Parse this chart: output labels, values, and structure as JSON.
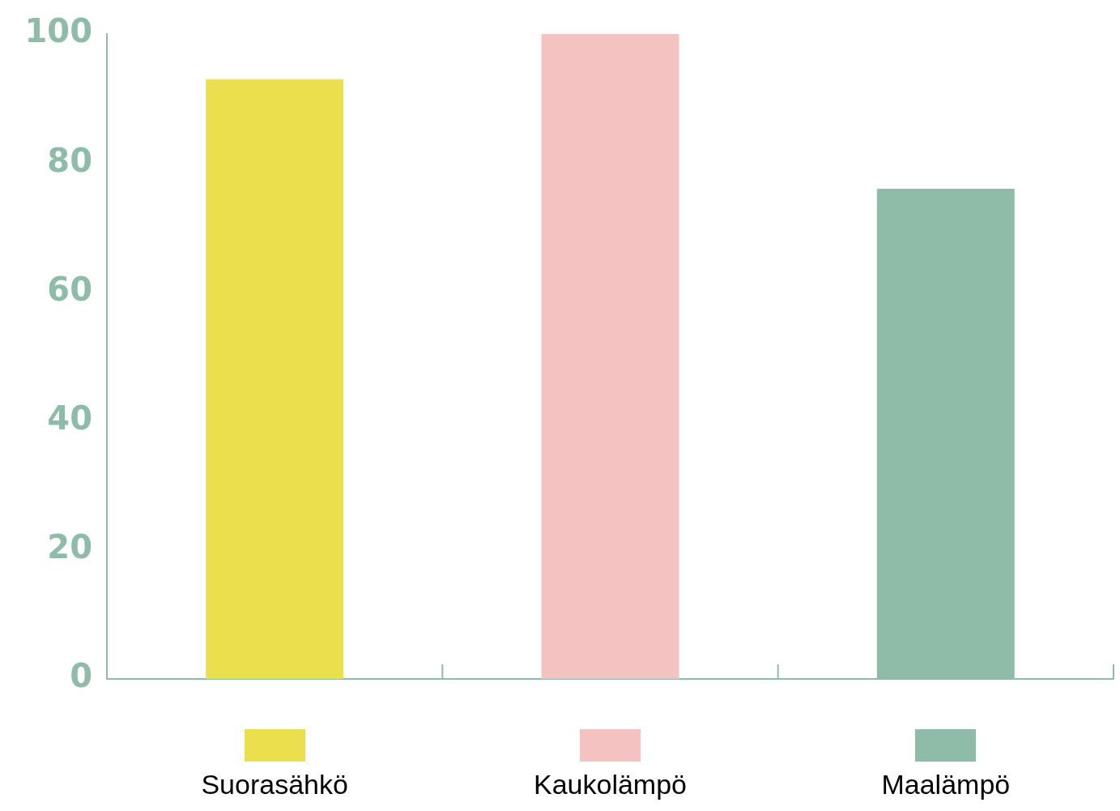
{
  "chart_data": {
    "type": "bar",
    "categories": [
      "Suorasähkö",
      "Kaukolämpö",
      "Maalämpö"
    ],
    "values": [
      93,
      100,
      76
    ],
    "colors": [
      "#ebdf4d",
      "#f3c2c1",
      "#8ebca8"
    ],
    "ylim": [
      0,
      100
    ],
    "yticks": [
      0,
      20,
      40,
      60,
      80,
      100
    ],
    "grid": false,
    "legend": false
  }
}
